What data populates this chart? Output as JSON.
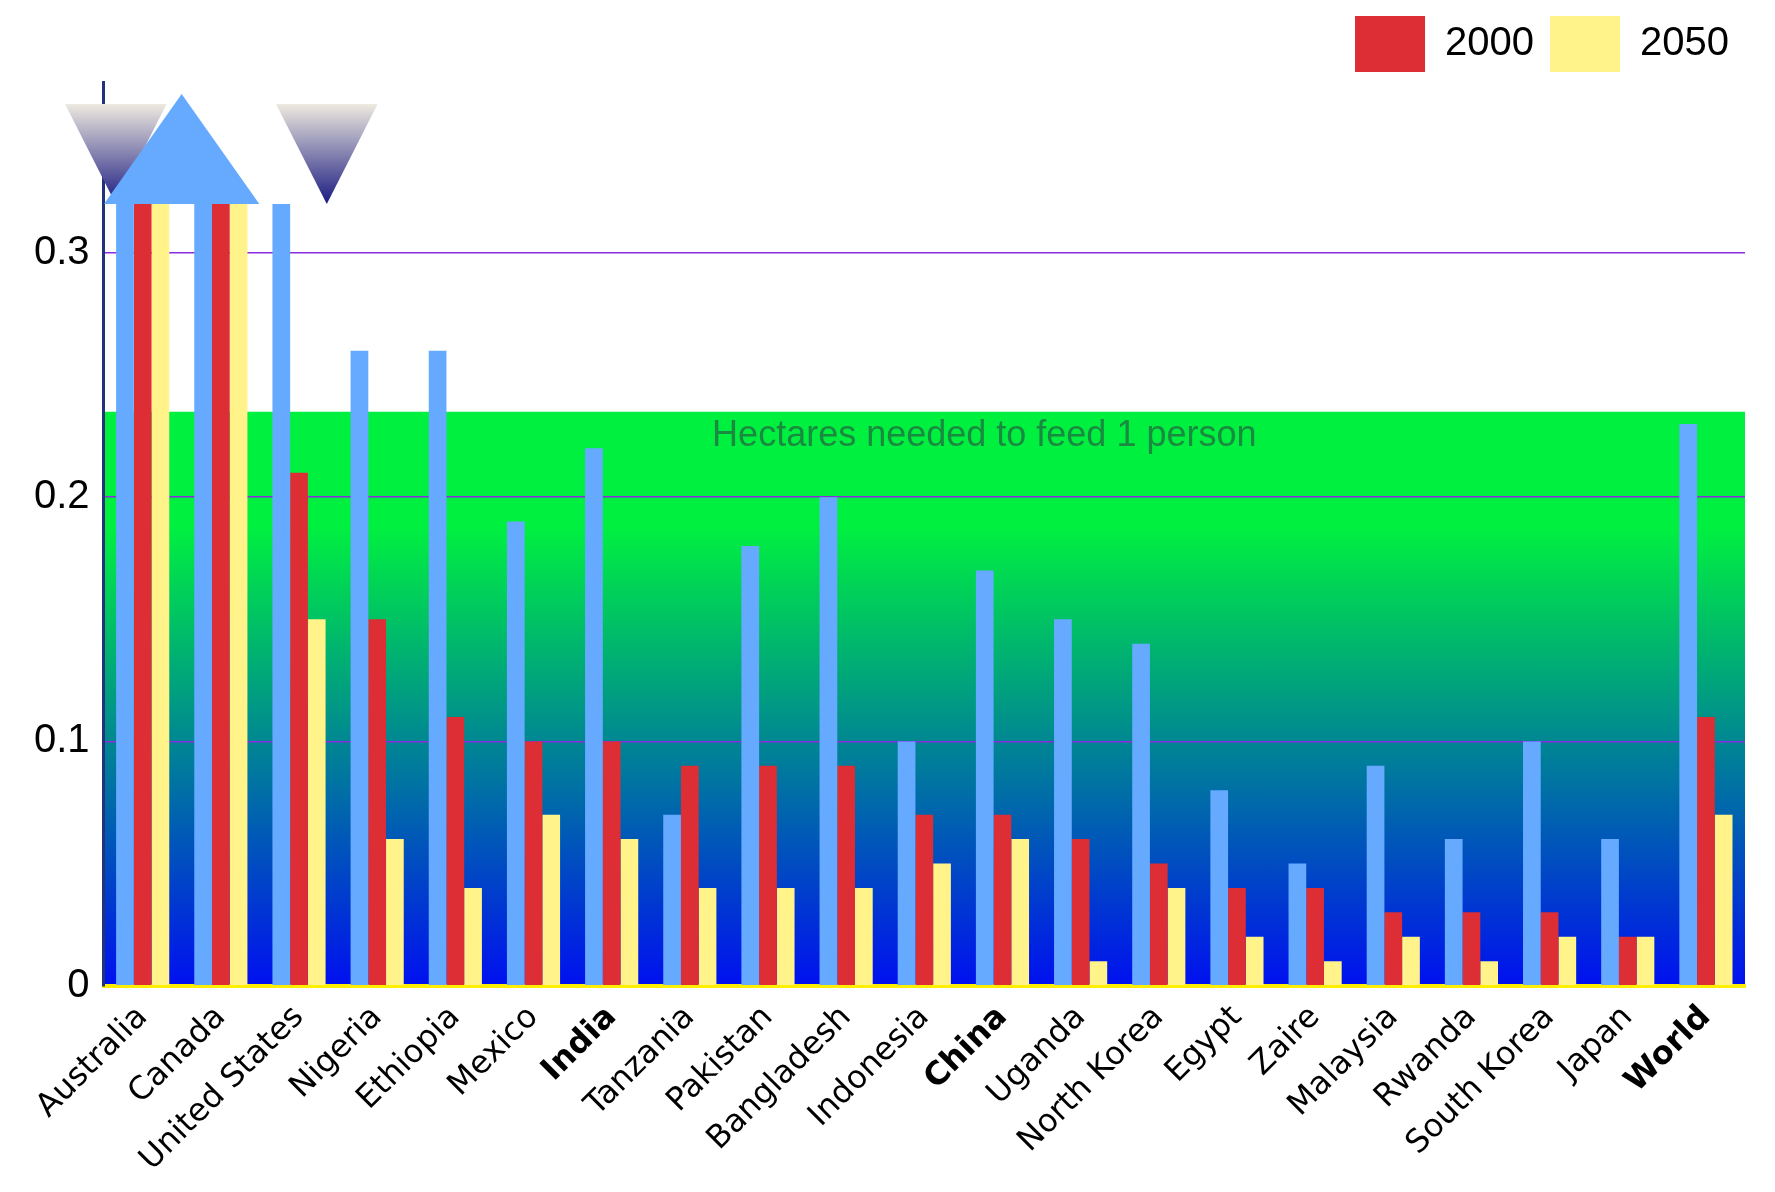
{
  "chart_data": {
    "type": "bar",
    "categories": [
      "Australia",
      "Canada",
      "United States",
      "Nigeria",
      "Ethiopia",
      "Mexico",
      "India",
      "Tanzania",
      "Pakistan",
      "Bangladesh",
      "Indonesia",
      "China",
      "Uganda",
      "North Korea",
      "Egypt",
      "Zaire",
      "Malaysia",
      "Rwanda",
      "South Korea",
      "Japan",
      "World"
    ],
    "series": [
      {
        "color": "#66aaff",
        "values": [
          0.32,
          0.32,
          0.32,
          0.26,
          0.26,
          0.19,
          0.22,
          0.07,
          0.18,
          0.2,
          0.1,
          0.17,
          0.15,
          0.14,
          0.08,
          0.05,
          0.09,
          0.06,
          0.1,
          0.06,
          0.23
        ]
      },
      {
        "name": "2000",
        "color": "#dd2e35",
        "values": [
          0.32,
          0.32,
          0.21,
          0.15,
          0.11,
          0.1,
          0.1,
          0.09,
          0.09,
          0.09,
          0.07,
          0.07,
          0.06,
          0.05,
          0.04,
          0.04,
          0.03,
          0.03,
          0.03,
          0.02,
          0.11
        ]
      },
      {
        "name": "2050",
        "color": "#fff38a",
        "values": [
          0.32,
          0.32,
          0.15,
          0.06,
          0.04,
          0.07,
          0.06,
          0.04,
          0.04,
          0.04,
          0.05,
          0.06,
          0.01,
          0.04,
          0.02,
          0.01,
          0.02,
          0.01,
          0.02,
          0.02,
          0.07
        ]
      }
    ],
    "ylim": [
      0,
      0.37
    ],
    "yticks": [
      0,
      0.1,
      0.2,
      0.3
    ],
    "grid": "y",
    "legend": "top right",
    "bands": [
      {
        "axis": "y",
        "from": 0,
        "to": 0.235,
        "label": "Hectares needed to feed 1 person",
        "color": "#00f040"
      }
    ]
  }
}
